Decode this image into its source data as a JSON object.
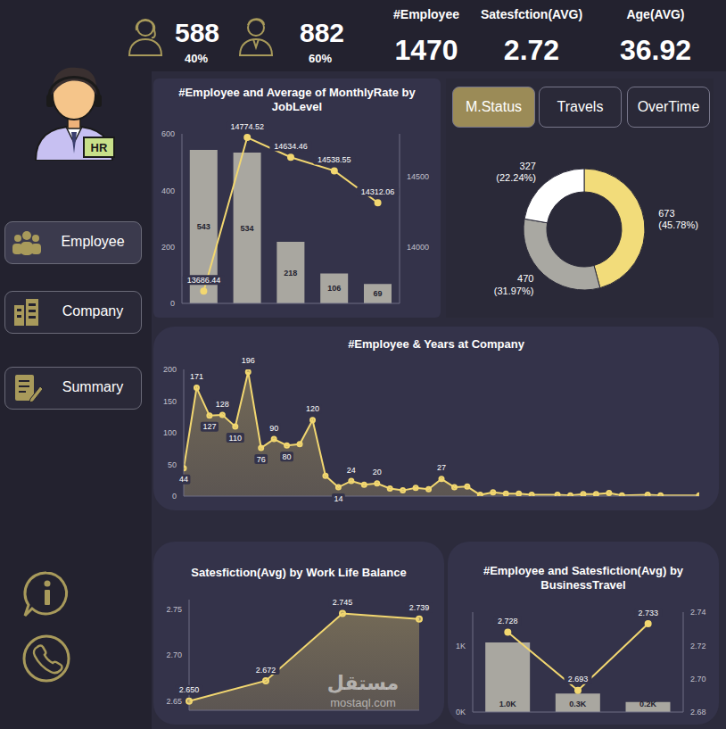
{
  "gender": [
    {
      "count": 588,
      "share": "40%"
    },
    {
      "count": 882,
      "share": "60%"
    }
  ],
  "cards": [
    {
      "title": "#Employee",
      "value": 1470
    },
    {
      "title": "Satesfction(AVG)",
      "value": 2.72
    },
    {
      "title": "Age(AVG)",
      "value": 36.92
    }
  ],
  "logo_badge": "HR",
  "nav": [
    "Employee",
    "Company",
    "Summary"
  ],
  "tabs": [
    "M.Status",
    "Travels",
    "OverTime"
  ],
  "active_tab": "M.Status",
  "watermark": [
    "مستقل",
    "mostaql.com"
  ],
  "chart_data": [
    {
      "type": "bar",
      "title": "#Employee and Average of MonthlyRate by JobLevel",
      "categories": [
        null,
        null,
        null,
        null,
        null
      ],
      "series": [
        {
          "type": "bar",
          "color": "#a9a7a0",
          "values": [
            543,
            534,
            218,
            106,
            69
          ]
        },
        {
          "type": "line",
          "axis": "y2",
          "color": "#f2d770",
          "marker": "circle",
          "values": [
            13686.44,
            14774.52,
            14634.46,
            14538.55,
            14312.06
          ]
        }
      ],
      "ylim": [
        0,
        600
      ],
      "yticks": [
        0,
        200,
        400,
        600
      ],
      "y2lim": [
        13600,
        14800
      ],
      "y2ticks": [
        14000,
        14500
      ],
      "data_labels": true,
      "tick_labels": "y"
    },
    {
      "type": "donut",
      "values": [
        673,
        470,
        327
      ],
      "percent_labels": [
        "(45.78%)",
        "(31.97%)",
        "(22.24%)"
      ],
      "colors": [
        "#f2dc7a",
        "#a9a8a2",
        "#ffffff"
      ],
      "data_labels": true
    },
    {
      "type": "area",
      "title": "#Employee & Years at Company",
      "x": [
        0,
        1,
        2,
        3,
        4,
        5,
        6,
        7,
        8,
        9,
        10,
        11,
        12,
        13,
        14,
        15,
        16,
        17,
        18,
        19,
        20,
        21,
        22,
        23,
        24,
        25,
        26,
        27,
        29,
        30,
        31,
        32,
        33,
        34,
        36,
        37,
        40
      ],
      "values": [
        44,
        171,
        127,
        128,
        110,
        196,
        76,
        90,
        80,
        82,
        120,
        32,
        14,
        24,
        18,
        20,
        12,
        9,
        13,
        11,
        27,
        14,
        15,
        2,
        6,
        4,
        4,
        2,
        2,
        1,
        3,
        3,
        5,
        1,
        2,
        1,
        1
      ],
      "value_labels": [
        "44",
        "171",
        "127",
        "128",
        "110",
        "196",
        "76",
        "90",
        "80",
        null,
        "120",
        null,
        "14",
        "24",
        null,
        "20",
        null,
        null,
        null,
        null,
        "27",
        null,
        null,
        null,
        null,
        null,
        null,
        null,
        null,
        null,
        null,
        null,
        null,
        null,
        null,
        null,
        null
      ],
      "color": "#f2d770",
      "marker": "circle",
      "xlim": [
        0,
        40
      ],
      "xticks": [],
      "ylim": [
        0,
        200
      ],
      "yticks": [
        0,
        50,
        100,
        150,
        200
      ],
      "tick_labels": "y"
    },
    {
      "type": "area",
      "title": "Satesfiction(Avg) by Work Life Balance",
      "categories": [
        null,
        null,
        null,
        null
      ],
      "values": [
        2.65,
        2.672,
        2.745,
        2.739
      ],
      "value_labels": [
        "2.650",
        "2.672",
        "2.745",
        "2.739"
      ],
      "color": "#f2d770",
      "marker": "circle",
      "ylim": [
        2.64,
        2.76
      ],
      "yticks": [
        2.65,
        {
          "value": 2.7,
          "label": "2.70"
        },
        2.75
      ],
      "tick_labels": "y"
    },
    {
      "type": "bar",
      "title": "#Employee and Satesfiction(Avg) by BusinessTravel",
      "categories": [
        null,
        null,
        null
      ],
      "series": [
        {
          "type": "bar",
          "color": "#a9a7a0",
          "values": [
            1043,
            277,
            150
          ],
          "value_labels": [
            "1.0K",
            "0.3K",
            "0.2K"
          ]
        },
        {
          "type": "line",
          "axis": "y2",
          "color": "#f2d770",
          "marker": "circle",
          "values": [
            2.728,
            2.693,
            2.733
          ]
        }
      ],
      "ylim": [
        0,
        1500
      ],
      "yticks": [
        {
          "value": 0,
          "label": "0K"
        },
        {
          "value": 1000,
          "label": "1K"
        }
      ],
      "y2lim": [
        2.68,
        2.74
      ],
      "y2ticks": [
        2.68,
        {
          "value": 2.7,
          "label": "2.70"
        },
        2.72,
        2.74
      ],
      "data_labels": true,
      "tick_labels": "y"
    }
  ]
}
